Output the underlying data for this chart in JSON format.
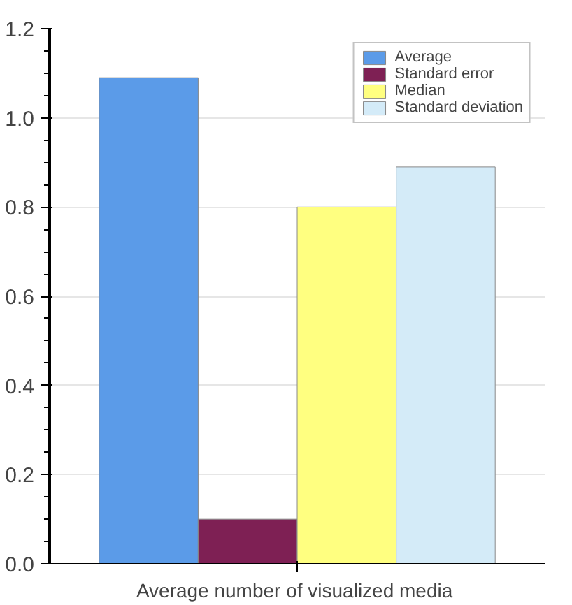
{
  "chart_data": {
    "type": "bar",
    "categories": [
      "Average number of  visualized media"
    ],
    "series": [
      {
        "name": "Average",
        "color": "#5b9be8",
        "values": [
          1.09
        ]
      },
      {
        "name": "Standard error",
        "color": "#7e2054",
        "values": [
          0.1
        ]
      },
      {
        "name": "Median",
        "color": "#ffff80",
        "values": [
          0.8
        ]
      },
      {
        "name": "Standard deviation",
        "color": "#d4ebf8",
        "values": [
          0.89
        ]
      }
    ],
    "ylim": [
      0,
      1.2
    ],
    "yticks": [
      {
        "value": 0,
        "label": "0.0"
      },
      0.2,
      0.4,
      0.6,
      0.8,
      {
        "value": 1,
        "label": "1.0"
      },
      1.2
    ],
    "grid": "y",
    "legend": "top right"
  }
}
